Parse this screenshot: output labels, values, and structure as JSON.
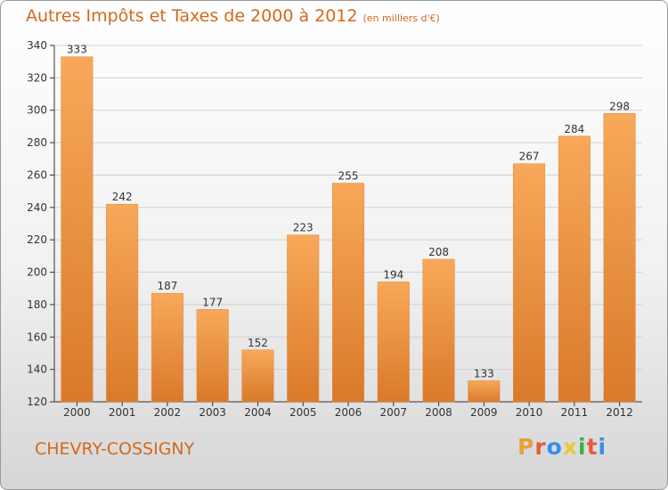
{
  "header": {
    "title": "Autres Impôts et Taxes de 2000 à 2012",
    "unit": "(en milliers d'€)"
  },
  "footer": {
    "commune": "CHEVRY-COSSIGNY",
    "logo": "Proxiti",
    "logo_colors": [
      "#e8a13a",
      "#e85a3a",
      "#3a8ee8",
      "#e8c83a",
      "#3ab14a",
      "#e85a3a",
      "#3a8ee8"
    ]
  },
  "colors": {
    "accent": "#d2691e",
    "bar_top": "#f8a85a",
    "bar_bottom": "#d97a2a",
    "grid": "#d0d0d0"
  },
  "chart_data": {
    "type": "bar",
    "title": "Autres Impôts et Taxes de 2000 à 2012",
    "subtitle": "(en milliers d'€)",
    "categories": [
      "2000",
      "2001",
      "2002",
      "2003",
      "2004",
      "2005",
      "2006",
      "2007",
      "2008",
      "2009",
      "2010",
      "2011",
      "2012"
    ],
    "values": [
      333,
      242,
      187,
      177,
      152,
      223,
      255,
      194,
      208,
      133,
      267,
      284,
      298
    ],
    "ylim": [
      120,
      340
    ],
    "yticks": [
      120,
      140,
      160,
      180,
      200,
      220,
      240,
      260,
      280,
      300,
      320,
      340
    ],
    "grid": true,
    "data_labels": true
  }
}
